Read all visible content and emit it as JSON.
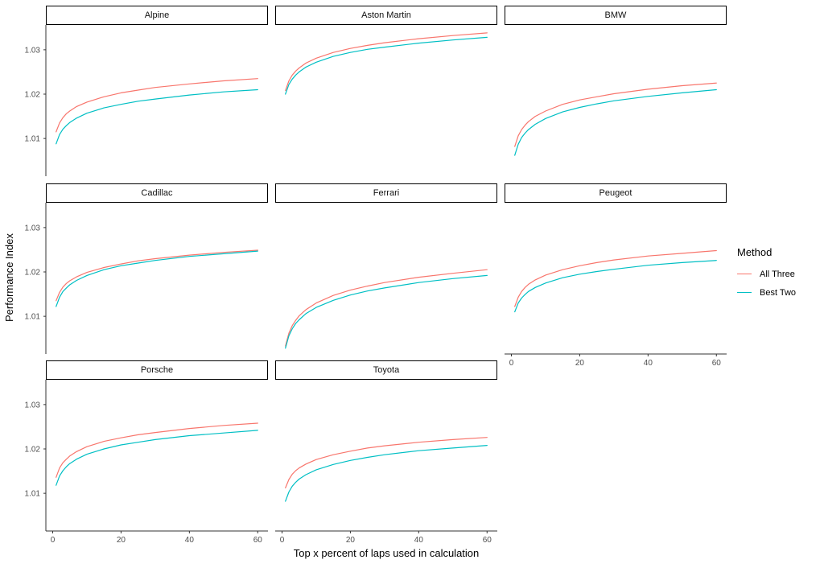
{
  "chart_data": {
    "type": "line",
    "title": "",
    "xlabel": "Top x percent of laps used in calculation",
    "ylabel": "Performance Index",
    "grid": false,
    "legend_position": "right",
    "x_ticks": [
      0,
      20,
      40,
      60
    ],
    "y_ticks": [
      1.01,
      1.02,
      1.03
    ],
    "xlim": [
      -2,
      63
    ],
    "ylim": [
      1.0015,
      1.0356
    ],
    "x": [
      1,
      2,
      3,
      4,
      5,
      7,
      10,
      15,
      20,
      25,
      30,
      40,
      50,
      60
    ],
    "series_colors": {
      "All Three": "#F8766D",
      "Best Two": "#00BFC4"
    },
    "facets": [
      {
        "name": "Alpine",
        "series": [
          {
            "name": "All Three",
            "values": [
              1.0115,
              1.0135,
              1.0147,
              1.0156,
              1.0162,
              1.0172,
              1.0182,
              1.0194,
              1.0203,
              1.0209,
              1.0215,
              1.0223,
              1.023,
              1.0235
            ]
          },
          {
            "name": "Best Two",
            "values": [
              1.0088,
              1.0109,
              1.0121,
              1.0129,
              1.0136,
              1.0146,
              1.0157,
              1.0169,
              1.0177,
              1.0184,
              1.0189,
              1.0198,
              1.0205,
              1.021
            ]
          }
        ]
      },
      {
        "name": "Aston Martin",
        "series": [
          {
            "name": "All Three",
            "values": [
              1.0208,
              1.023,
              1.0243,
              1.0252,
              1.0259,
              1.027,
              1.0281,
              1.0294,
              1.0303,
              1.031,
              1.0316,
              1.0325,
              1.0332,
              1.0338
            ]
          },
          {
            "name": "Best Two",
            "values": [
              1.02,
              1.0222,
              1.0234,
              1.0243,
              1.025,
              1.0261,
              1.0272,
              1.0285,
              1.0294,
              1.0301,
              1.0306,
              1.0315,
              1.0322,
              1.0328
            ]
          }
        ]
      },
      {
        "name": "BMW",
        "series": [
          {
            "name": "All Three",
            "values": [
              1.0082,
              1.0106,
              1.012,
              1.013,
              1.0138,
              1.015,
              1.0162,
              1.0177,
              1.0187,
              1.0194,
              1.0201,
              1.0211,
              1.0219,
              1.0225
            ]
          },
          {
            "name": "Best Two",
            "values": [
              1.0062,
              1.0087,
              1.0102,
              1.0112,
              1.012,
              1.0132,
              1.0145,
              1.016,
              1.017,
              1.0178,
              1.0185,
              1.0195,
              1.0203,
              1.021
            ]
          }
        ]
      },
      {
        "name": "Cadillac",
        "series": [
          {
            "name": "All Three",
            "values": [
              1.0135,
              1.0154,
              1.0166,
              1.0174,
              1.018,
              1.0189,
              1.0199,
              1.021,
              1.0218,
              1.0225,
              1.023,
              1.0238,
              1.0244,
              1.0249
            ]
          },
          {
            "name": "Best Two",
            "values": [
              1.0122,
              1.0143,
              1.0156,
              1.0164,
              1.0171,
              1.0181,
              1.0192,
              1.0205,
              1.0214,
              1.022,
              1.0226,
              1.0235,
              1.0241,
              1.0247
            ]
          }
        ]
      },
      {
        "name": "Ferrari",
        "series": [
          {
            "name": "All Three",
            "values": [
              1.0033,
              1.0062,
              1.0079,
              1.0091,
              1.0101,
              1.0115,
              1.013,
              1.0147,
              1.0159,
              1.0168,
              1.0176,
              1.0188,
              1.0197,
              1.0205
            ]
          },
          {
            "name": "Best Two",
            "values": [
              1.0028,
              1.0056,
              1.0072,
              1.0084,
              1.0092,
              1.0106,
              1.012,
              1.0136,
              1.0148,
              1.0157,
              1.0164,
              1.0176,
              1.0185,
              1.0192
            ]
          }
        ]
      },
      {
        "name": "Peugeot",
        "series": [
          {
            "name": "All Three",
            "values": [
              1.0122,
              1.0143,
              1.0156,
              1.0165,
              1.0172,
              1.0182,
              1.0193,
              1.0205,
              1.0214,
              1.0221,
              1.0227,
              1.0236,
              1.0242,
              1.0248
            ]
          },
          {
            "name": "Best Two",
            "values": [
              1.011,
              1.013,
              1.0141,
              1.0149,
              1.0156,
              1.0165,
              1.0175,
              1.0187,
              1.0195,
              1.0201,
              1.0206,
              1.0215,
              1.0221,
              1.0226
            ]
          }
        ]
      },
      {
        "name": "Porsche",
        "series": [
          {
            "name": "All Three",
            "values": [
              1.0136,
              1.0157,
              1.0169,
              1.0177,
              1.0184,
              1.0194,
              1.0205,
              1.0217,
              1.0225,
              1.0232,
              1.0237,
              1.0246,
              1.0253,
              1.0258
            ]
          },
          {
            "name": "Best Two",
            "values": [
              1.0118,
              1.0139,
              1.0151,
              1.016,
              1.0167,
              1.0177,
              1.0188,
              1.02,
              1.0209,
              1.0215,
              1.0221,
              1.023,
              1.0236,
              1.0242
            ]
          }
        ]
      },
      {
        "name": "Toyota",
        "series": [
          {
            "name": "All Three",
            "values": [
              1.0112,
              1.0131,
              1.0143,
              1.0151,
              1.0157,
              1.0166,
              1.0176,
              1.0187,
              1.0195,
              1.0202,
              1.0207,
              1.0215,
              1.0221,
              1.0226
            ]
          },
          {
            "name": "Best Two",
            "values": [
              1.0082,
              1.0103,
              1.0116,
              1.0125,
              1.0132,
              1.0142,
              1.0153,
              1.0165,
              1.0174,
              1.0181,
              1.0187,
              1.0196,
              1.0202,
              1.0208
            ]
          }
        ]
      }
    ]
  },
  "legend": {
    "title": "Method",
    "items": [
      {
        "label": "All Three",
        "color": "#F8766D"
      },
      {
        "label": "Best Two",
        "color": "#00BFC4"
      }
    ]
  },
  "style_colors": {
    "axis_line": "#333333",
    "tick_label": "#4d4d4d",
    "strip_border": "#000000",
    "background": "#ffffff"
  }
}
